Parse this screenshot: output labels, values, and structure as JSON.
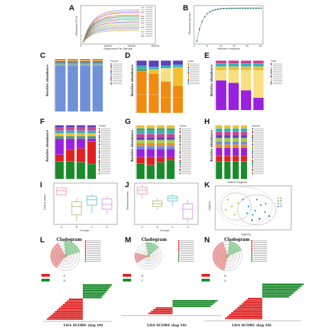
{
  "panels": {
    "A": {
      "label": "A",
      "xlabel": "Sequences Per Sample",
      "ylabel": "Observed OTUs",
      "ticks_x": [
        "0",
        "100000",
        "200000",
        "300000"
      ]
    },
    "B": {
      "label": "B",
      "xlabel": "Number of sample",
      "ylabel": "Observed species",
      "ticks_x": [
        "0",
        "5",
        "10",
        "15",
        "20",
        "25"
      ]
    },
    "C": {
      "label": "C",
      "ylabel": "Relative abundance",
      "legend_title": "Phylum"
    },
    "D": {
      "label": "D",
      "ylabel": "Relative abundance",
      "legend_title": "Class"
    },
    "E": {
      "label": "E",
      "ylabel": "Relative abundance",
      "legend_title": "Order"
    },
    "F": {
      "label": "F",
      "ylabel": "Relative abundance",
      "legend_title": "Family"
    },
    "G": {
      "label": "G",
      "ylabel": "Relative abundance",
      "legend_title": "Genus"
    },
    "H": {
      "label": "H",
      "ylabel": "Relative abundance",
      "legend_title": "Species"
    },
    "I": {
      "label": "I",
      "ylabel": "Chao1 index",
      "xlabel": "Groups",
      "groups": [
        "A",
        "B",
        "C",
        "D"
      ]
    },
    "J": {
      "label": "J",
      "ylabel": "Shannon index",
      "xlabel": "Groups",
      "groups": [
        "A",
        "B",
        "C",
        "D"
      ]
    },
    "K": {
      "label": "K",
      "title": "NMDS Diagram",
      "xlabel": "NMDS1",
      "ylabel": "NMDS2",
      "legend": [
        "A",
        "B",
        "C",
        "D"
      ]
    },
    "L": {
      "label": "L",
      "title": "Cladogram",
      "groupA": "A",
      "groupB": "B",
      "lda": "LDA SCORE (log 10)"
    },
    "M": {
      "label": "M",
      "title": "Cladogram",
      "groupA": "B",
      "groupB": "C",
      "lda": "LDA SCORE (log 10)"
    },
    "N": {
      "label": "N",
      "title": "Cladogram",
      "groupA": "B",
      "groupB": "D",
      "lda": "LDA SCORE (log 10)"
    }
  },
  "colors": {
    "red": "#e02020",
    "green": "#1a8a2a",
    "blue": "#7090d8",
    "orange": "#f08a10",
    "purple": "#9a20e0",
    "yellow": "#f8e080"
  }
}
